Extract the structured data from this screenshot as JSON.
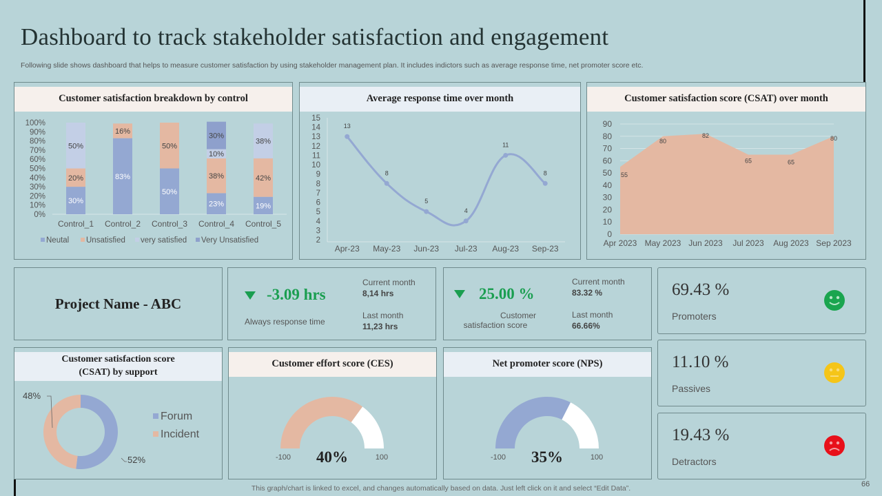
{
  "header": {
    "title": "Dashboard to track stakeholder satisfaction and engagement",
    "subtitle": "Following slide shows dashboard that helps to measure customer satisfaction by using stakeholder management plan. It includes indictors such as average response time, net promoter score etc."
  },
  "colors": {
    "background": "#b8d4d8",
    "blue": "#94a8d2",
    "peach": "#e4b8a2",
    "light_blue": "#c3cfe6",
    "green": "#1a9e50",
    "yellow": "#f5c518",
    "red": "#e8101a",
    "white": "#ffffff"
  },
  "cards": {
    "breakdown_title": "Customer satisfaction breakdown by control",
    "response_title": "Average response time over month",
    "csat_month_title": "Customer satisfaction score (CSAT) over month",
    "project_name": "Project Name - ABC",
    "csat_support_title_line1": "Customer satisfaction score",
    "csat_support_title_line2": "(CSAT) by support",
    "ces_title": "Customer effort score (CES)",
    "nps_title": "Net promoter score (NPS)"
  },
  "kpi_response": {
    "value": "-3.09 hrs",
    "trend_icon": "down-triangle",
    "label": "Always response time",
    "current_label": "Current month",
    "current_value": "8,14 hrs",
    "last_label": "Last month",
    "last_value": "11,23 hrs"
  },
  "kpi_csat": {
    "value": "25.00 %",
    "trend_icon": "down-triangle",
    "label_line1": "Customer",
    "label_line2": "satisfaction score",
    "current_label": "Current month",
    "current_value": "83.32 %",
    "last_label": "Last month",
    "last_value": "66.66%"
  },
  "nps_breakdown": [
    {
      "value": "69.43 %",
      "label": "Promoters",
      "icon": "happy-face",
      "color": "#1aa54f"
    },
    {
      "value": "11.10 %",
      "label": "Passives",
      "icon": "neutral-face",
      "color": "#f5c518"
    },
    {
      "value": "19.43 %",
      "label": "Detractors",
      "icon": "sad-face",
      "color": "#e8101a"
    }
  ],
  "footer": {
    "note": "This graph/chart is linked to excel,  and changes automatically based on data. Just left click on it and select “Edit Data”.",
    "page_number": "66"
  },
  "chart_data": [
    {
      "id": "breakdown",
      "type": "bar",
      "stacked": true,
      "title": "Customer satisfaction breakdown by control",
      "categories": [
        "Control_1",
        "Control_2",
        "Control_3",
        "Control_4",
        "Control_5"
      ],
      "series": [
        {
          "name": "Neutal",
          "color": "#94a8d2",
          "values": [
            30,
            83,
            50,
            23,
            19
          ],
          "labels": [
            "30%",
            "83%",
            "50%",
            "23%",
            "19%"
          ]
        },
        {
          "name": "Unsatisfied",
          "color": "#e4b8a2",
          "values": [
            20,
            16,
            50,
            38,
            42
          ],
          "labels": [
            "20%",
            "16%",
            "50%",
            "38%",
            "42%"
          ]
        },
        {
          "name": "very satisfied",
          "color": "#c3cfe6",
          "values": [
            50,
            0,
            0,
            10,
            38
          ],
          "labels": [
            "50%",
            "",
            "",
            "10%",
            "38%"
          ]
        },
        {
          "name": "Very Unsatisfied",
          "color": "#8ea0cc",
          "values": [
            0,
            0,
            0,
            30,
            0
          ],
          "labels": [
            "",
            "",
            "",
            "30%",
            ""
          ]
        }
      ],
      "yticks": [
        "0%",
        "10%",
        "20%",
        "30%",
        "40%",
        "50%",
        "60%",
        "70%",
        "80%",
        "90%",
        "100%"
      ],
      "ylim": [
        0,
        100
      ],
      "legend": "bottom"
    },
    {
      "id": "response",
      "type": "line",
      "smooth": true,
      "title": "Average response time over month",
      "categories": [
        "Apr-23",
        "May-23",
        "Jun-23",
        "Jul-23",
        "Aug-23",
        "Sep-23"
      ],
      "values": [
        13,
        8,
        5,
        4,
        11,
        8
      ],
      "yticks": [
        "2",
        "3",
        "4",
        "5",
        "6",
        "7",
        "8",
        "9",
        "10",
        "11",
        "12",
        "13",
        "14",
        "15"
      ],
      "ylim": [
        2,
        15
      ],
      "color": "#94a8d2"
    },
    {
      "id": "csat_month",
      "type": "area",
      "title": "Customer satisfaction score (CSAT) over month",
      "categories": [
        "Apr 2023",
        "May 2023",
        "Jun 2023",
        "Jul 2023",
        "Aug 2023",
        "Sep 2023"
      ],
      "values": [
        55,
        80,
        82,
        65,
        65,
        80
      ],
      "yticks": [
        "0",
        "10",
        "20",
        "30",
        "40",
        "50",
        "60",
        "70",
        "80",
        "90"
      ],
      "ylim": [
        0,
        90
      ],
      "color": "#e4b8a2",
      "grid": true
    },
    {
      "id": "csat_support",
      "type": "pie",
      "donut": true,
      "title": "Customer satisfaction score (CSAT) by support",
      "slices": [
        {
          "name": "Forum",
          "value": 52,
          "label": "52%",
          "color": "#94a8d2"
        },
        {
          "name": "Incident",
          "value": 48,
          "label": "48%",
          "color": "#e4b8a2"
        }
      ],
      "legend": "right"
    },
    {
      "id": "ces",
      "type": "gauge",
      "title": "Customer effort score (CES)",
      "value_label": "40%",
      "fill_fraction": 0.7,
      "min_label": "-100",
      "max_label": "100",
      "color": "#e4b8a2"
    },
    {
      "id": "nps",
      "type": "gauge",
      "title": "Net promoter score (NPS)",
      "value_label": "35%",
      "fill_fraction": 0.65,
      "min_label": "-100",
      "max_label": "100",
      "color": "#94a8d2"
    }
  ]
}
